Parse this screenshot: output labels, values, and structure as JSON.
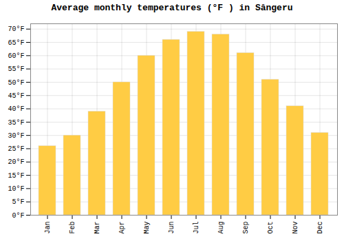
{
  "chart_data": {
    "type": "bar",
    "title": "Average monthly temperatures (°F ) in Sângeru",
    "categories": [
      "Jan",
      "Feb",
      "Mar",
      "Apr",
      "May",
      "Jun",
      "Jul",
      "Aug",
      "Sep",
      "Oct",
      "Nov",
      "Dec"
    ],
    "values": [
      26,
      30,
      39,
      50,
      60,
      66,
      69,
      68,
      61,
      51,
      41,
      31
    ],
    "color": "#FFCC44",
    "ylim": [
      0,
      72
    ],
    "yticks": [
      {
        "value": 0,
        "label": "0°F"
      },
      {
        "value": 5,
        "label": "5°F"
      },
      {
        "value": 10,
        "label": "10°F"
      },
      {
        "value": 15,
        "label": "15°F"
      },
      {
        "value": 20,
        "label": "20°F"
      },
      {
        "value": 25,
        "label": "25°F"
      },
      {
        "value": 30,
        "label": "30°F"
      },
      {
        "value": 35,
        "label": "35°F"
      },
      {
        "value": 40,
        "label": "40°F"
      },
      {
        "value": 45,
        "label": "45°F"
      },
      {
        "value": 50,
        "label": "50°F"
      },
      {
        "value": 55,
        "label": "55°F"
      },
      {
        "value": 60,
        "label": "60°F"
      },
      {
        "value": 65,
        "label": "65°F"
      },
      {
        "value": 70,
        "label": "70°F"
      }
    ],
    "grid": true
  }
}
